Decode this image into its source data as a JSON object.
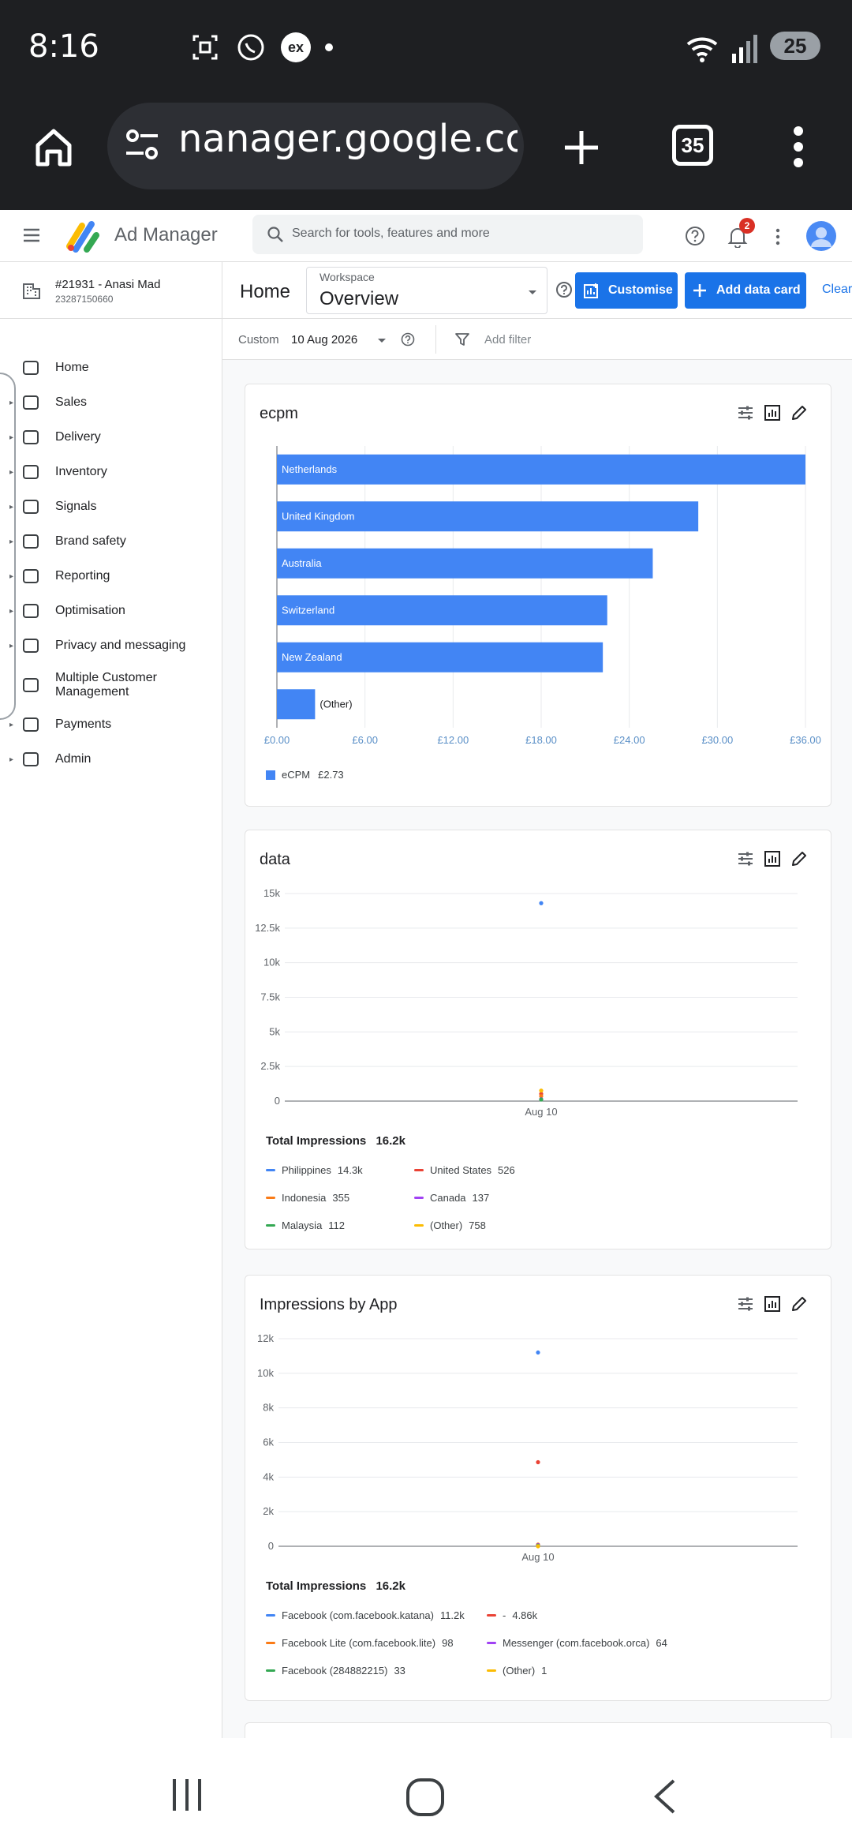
{
  "status_bar": {
    "time": "8:16",
    "battery": "25"
  },
  "browser": {
    "url": "nanager.google.com",
    "tab_count": "35"
  },
  "app": {
    "name": "Ad Manager",
    "search_placeholder": "Search for tools, features and more",
    "notification_count": "2"
  },
  "account": {
    "name": "#21931 - Anasi Mad",
    "id": "23287150660"
  },
  "sidebar": {
    "items": [
      {
        "label": "Home",
        "icon": "home-icon",
        "expandable": false
      },
      {
        "label": "Sales",
        "icon": "cart-icon",
        "expandable": true
      },
      {
        "label": "Delivery",
        "icon": "truck-icon",
        "expandable": true
      },
      {
        "label": "Inventory",
        "icon": "inventory-icon",
        "expandable": true
      },
      {
        "label": "Signals",
        "icon": "signal-icon",
        "expandable": true
      },
      {
        "label": "Brand safety",
        "icon": "shield-icon",
        "expandable": true
      },
      {
        "label": "Reporting",
        "icon": "report-icon",
        "expandable": true
      },
      {
        "label": "Optimisation",
        "icon": "optimisation-icon",
        "expandable": true
      },
      {
        "label": "Privacy and messaging",
        "icon": "privacy-icon",
        "expandable": true
      },
      {
        "label": "Multiple Customer Management",
        "icon": "customers-icon",
        "expandable": false
      },
      {
        "label": "Payments",
        "icon": "payments-icon",
        "expandable": true
      },
      {
        "label": "Admin",
        "icon": "wrench-icon",
        "expandable": true
      }
    ]
  },
  "header": {
    "title": "Home",
    "workspace_label": "Workspace",
    "workspace_value": "Overview",
    "customise": "Customise",
    "add_data_card": "Add data card",
    "clear": "Clear"
  },
  "filters": {
    "date_type": "Custom",
    "date_value": "10 Aug 2026",
    "add_filter": "Add filter"
  },
  "colors": {
    "accent": "#1a73e8",
    "bar": "#4285f4",
    "series": [
      "#4285f4",
      "#ea4335",
      "#fa7b17",
      "#a142f4",
      "#34a853",
      "#fbbc04"
    ]
  },
  "cards": {
    "ecpm": {
      "title": "ecpm",
      "legend_label": "eCPM",
      "legend_value": "£2.73",
      "chart_data": {
        "type": "bar",
        "orientation": "horizontal",
        "categories": [
          "Netherlands",
          "United Kingdom",
          "Australia",
          "Switzerland",
          "New Zealand",
          "(Other)"
        ],
        "values": [
          36.1,
          28.7,
          25.6,
          22.5,
          22.2,
          2.6
        ],
        "x_ticks": [
          "£0.00",
          "£6.00",
          "£12.00",
          "£18.00",
          "£24.00",
          "£30.00",
          "£36.00"
        ],
        "xlim": [
          0,
          36
        ],
        "grid": true
      }
    },
    "data": {
      "title": "data",
      "total_label": "Total Impressions",
      "total_value": "16.2k",
      "chart_data": {
        "type": "scatter",
        "x": [
          "Aug 10"
        ],
        "y_ticks": [
          "15k",
          "12.5k",
          "10k",
          "7.5k",
          "5k",
          "2.5k",
          "0"
        ],
        "ylim": [
          0,
          15000
        ],
        "series": [
          {
            "name": "Philippines",
            "value_label": "14.3k",
            "values": [
              14300
            ]
          },
          {
            "name": "United States",
            "value_label": "526",
            "values": [
              526
            ]
          },
          {
            "name": "Indonesia",
            "value_label": "355",
            "values": [
              355
            ]
          },
          {
            "name": "Canada",
            "value_label": "137",
            "values": [
              137
            ]
          },
          {
            "name": "Malaysia",
            "value_label": "112",
            "values": [
              112
            ]
          },
          {
            "name": "(Other)",
            "value_label": "758",
            "values": [
              758
            ]
          }
        ]
      }
    },
    "apps": {
      "title": "Impressions by App",
      "total_label": "Total Impressions",
      "total_value": "16.2k",
      "chart_data": {
        "type": "scatter",
        "x": [
          "Aug 10"
        ],
        "y_ticks": [
          "12k",
          "10k",
          "8k",
          "6k",
          "4k",
          "2k",
          "0"
        ],
        "ylim": [
          0,
          12000
        ],
        "series": [
          {
            "name": "Facebook (com.facebook.katana)",
            "value_label": "11.2k",
            "values": [
              11200
            ]
          },
          {
            "name": "-",
            "value_label": "4.86k",
            "values": [
              4860
            ]
          },
          {
            "name": "Facebook Lite (com.facebook.lite)",
            "value_label": "98",
            "values": [
              98
            ]
          },
          {
            "name": "Messenger (com.facebook.orca)",
            "value_label": "64",
            "values": [
              64
            ]
          },
          {
            "name": "Facebook (284882215)",
            "value_label": "33",
            "values": [
              33
            ]
          },
          {
            "name": "(Other)",
            "value_label": "1",
            "values": [
              1
            ]
          }
        ]
      }
    }
  }
}
